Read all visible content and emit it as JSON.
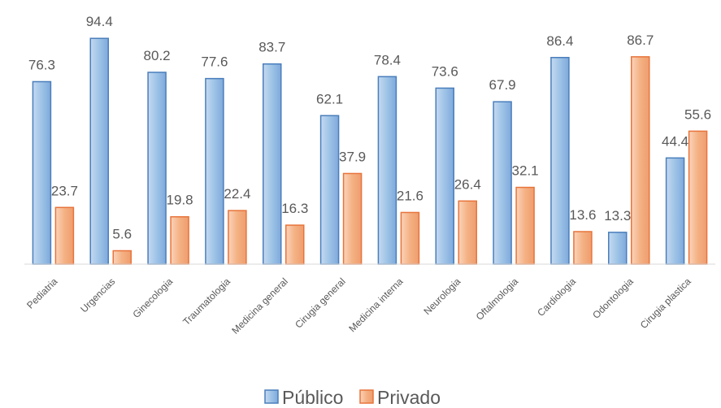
{
  "chart_data": {
    "type": "bar",
    "title": "",
    "xlabel": "",
    "ylabel": "",
    "ylim": [
      0,
      100
    ],
    "grid": false,
    "legend_position": "bottom",
    "categories": [
      "Pediatria",
      "Urgencias",
      "Ginecologia",
      "Traumatologia",
      "Medicina general",
      "Cirugia general",
      "Medicina interna",
      "Neurologia",
      "Oftalmologia",
      "Cardiologia",
      "Odontologia",
      "Cirugia plastica"
    ],
    "series": [
      {
        "name": "Público",
        "color": "#9dc3e6",
        "edge": "#4a7ebb",
        "values": [
          76.3,
          94.4,
          80.2,
          77.6,
          83.7,
          62.1,
          78.4,
          73.6,
          67.9,
          86.4,
          13.3,
          44.4
        ]
      },
      {
        "name": "Privado",
        "color": "#f4b183",
        "edge": "#e8743b",
        "values": [
          23.7,
          5.6,
          19.8,
          22.4,
          16.3,
          37.9,
          21.6,
          26.4,
          32.1,
          13.6,
          86.7,
          55.6
        ]
      }
    ]
  }
}
